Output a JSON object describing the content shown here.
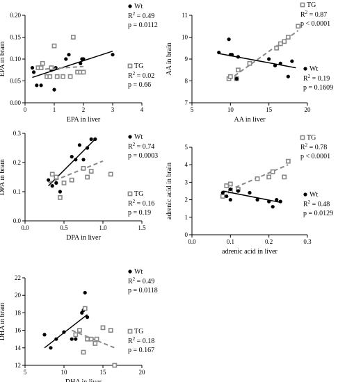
{
  "chart_data": [
    {
      "type": "scatter",
      "xlabel": "EPA in liver",
      "ylabel": "EPA in brain",
      "xlim": [
        0,
        4
      ],
      "ylim": [
        0,
        0.2
      ],
      "xticks": [
        "0",
        "1",
        "2",
        "3",
        "4"
      ],
      "yticks": [
        "0.00",
        "0.05",
        "0.10",
        "0.15",
        "0.20"
      ],
      "series": [
        {
          "name": "Wt",
          "marker": "filled-circle",
          "line": "solid",
          "color": "#000000",
          "x": [
            0.25,
            0.3,
            0.4,
            0.55,
            0.8,
            0.9,
            1.0,
            1.05,
            1.4,
            1.5,
            1.9,
            1.95,
            2.0,
            3.0
          ],
          "y": [
            0.08,
            0.07,
            0.04,
            0.04,
            0.06,
            0.075,
            0.03,
            0.08,
            0.1,
            0.11,
            0.09,
            0.1,
            0.1,
            0.11
          ],
          "fit": [
            [
              0.25,
              0.058
            ],
            [
              3.0,
              0.118
            ]
          ],
          "legend": [
            "Wt",
            "R",
            "2",
            " = 0.49",
            "p = 0.0112"
          ]
        },
        {
          "name": "TG",
          "marker": "open-square",
          "line": "dashed",
          "color": "#888888",
          "x": [
            0.45,
            0.55,
            0.6,
            0.75,
            0.85,
            0.9,
            1.0,
            1.1,
            1.3,
            1.55,
            1.65,
            1.8,
            1.9,
            2.0
          ],
          "y": [
            0.08,
            0.08,
            0.09,
            0.06,
            0.06,
            0.08,
            0.13,
            0.06,
            0.06,
            0.06,
            0.15,
            0.07,
            0.07,
            0.07
          ],
          "fit": [
            [
              0.45,
              0.076
            ],
            [
              2.0,
              0.083
            ]
          ],
          "legend": [
            "TG",
            "R",
            "2",
            " = 0.02",
            "p = 0.66"
          ]
        }
      ]
    },
    {
      "type": "scatter",
      "xlabel": "AA in liver",
      "ylabel": "AA in brain",
      "xlim": [
        5,
        20
      ],
      "ylim": [
        7,
        11
      ],
      "xticks": [
        "5",
        "10",
        "15",
        "20"
      ],
      "yticks": [
        "7",
        "8",
        "9",
        "10",
        "11"
      ],
      "series": [
        {
          "name": "TG",
          "marker": "open-square",
          "line": "dashed",
          "color": "#888888",
          "x": [
            9.8,
            10.0,
            10.8,
            11.0,
            12.5,
            16.0,
            16.5,
            17.0,
            17.5,
            18.8
          ],
          "y": [
            8.1,
            8.2,
            8.1,
            8.5,
            8.8,
            9.5,
            9.7,
            9.8,
            10.0,
            10.5
          ],
          "fit": [
            [
              9.8,
              8.05
            ],
            [
              18.8,
              10.3
            ]
          ],
          "legend": [
            "TG",
            "R",
            "2",
            " = 0.87",
            "p < 0.0001"
          ]
        },
        {
          "name": "Wt",
          "marker": "filled-circle",
          "line": "solid",
          "color": "#000000",
          "x": [
            8.5,
            9.8,
            10.0,
            10.2,
            10.8,
            11.0,
            15.0,
            15.8,
            16.5,
            17.5,
            18.0
          ],
          "y": [
            9.3,
            9.9,
            9.2,
            9.2,
            8.1,
            9.1,
            9.0,
            8.7,
            8.8,
            8.2,
            8.9
          ],
          "fit": [
            [
              8.5,
              9.25
            ],
            [
              18.5,
              8.6
            ]
          ],
          "legend": [
            "Wt",
            "R",
            "2",
            " = 0.19",
            "p = 0.1609"
          ]
        }
      ]
    },
    {
      "type": "scatter",
      "xlabel": "DPA in liver",
      "ylabel": "DPA in brain",
      "xlim": [
        0,
        1.5
      ],
      "ylim": [
        0,
        0.3
      ],
      "xticks": [
        "0.0",
        "0.5",
        "1.0",
        "1.5"
      ],
      "yticks": [
        "0.0",
        "0.1",
        "0.2",
        "0.3"
      ],
      "series": [
        {
          "name": "Wt",
          "marker": "filled-circle",
          "line": "solid",
          "color": "#000000",
          "x": [
            0.3,
            0.35,
            0.4,
            0.45,
            0.6,
            0.65,
            0.7,
            0.75,
            0.8,
            0.85,
            0.9
          ],
          "y": [
            0.14,
            0.12,
            0.13,
            0.1,
            0.22,
            0.21,
            0.26,
            0.21,
            0.25,
            0.28,
            0.28
          ],
          "fit": [
            [
              0.3,
              0.12
            ],
            [
              0.9,
              0.28
            ]
          ],
          "legend": [
            "Wt",
            "R",
            "2",
            " = 0.74",
            "p = 0.0003"
          ]
        },
        {
          "name": "TG",
          "marker": "open-square",
          "line": "dashed",
          "color": "#888888",
          "x": [
            0.35,
            0.4,
            0.45,
            0.5,
            0.6,
            0.75,
            0.8,
            0.85,
            1.1
          ],
          "y": [
            0.16,
            0.15,
            0.08,
            0.13,
            0.14,
            0.18,
            0.15,
            0.17,
            0.16
          ],
          "fit": [
            [
              0.3,
              0.13
            ],
            [
              1.0,
              0.205
            ]
          ],
          "legend": [
            "TG",
            "R",
            "2",
            " = 0.16",
            "p = 0.19"
          ]
        }
      ]
    },
    {
      "type": "scatter",
      "xlabel": "adrenic acid in liver",
      "ylabel": "adrenic acid in brain",
      "xlim": [
        0,
        0.3
      ],
      "ylim": [
        0,
        5
      ],
      "xticks": [
        "0.0",
        "0.1",
        "0.2",
        "0.3"
      ],
      "yticks": [
        "0",
        "1",
        "2",
        "3",
        "4",
        "5"
      ],
      "series": [
        {
          "name": "TG",
          "marker": "open-square",
          "line": "dashed",
          "color": "#888888",
          "x": [
            0.08,
            0.09,
            0.1,
            0.1,
            0.12,
            0.17,
            0.2,
            0.21,
            0.24,
            0.25
          ],
          "y": [
            2.2,
            2.8,
            2.5,
            2.9,
            2.6,
            3.2,
            3.3,
            3.6,
            3.3,
            4.2
          ],
          "fit": [
            [
              0.08,
              2.4
            ],
            [
              0.25,
              4.0
            ]
          ],
          "legend": [
            "TG",
            "R",
            "2",
            " = 0.78",
            "p < 0.0001"
          ]
        },
        {
          "name": "Wt",
          "marker": "filled-circle",
          "line": "solid",
          "color": "#000000",
          "x": [
            0.08,
            0.09,
            0.1,
            0.1,
            0.12,
            0.15,
            0.17,
            0.2,
            0.21,
            0.22,
            0.23
          ],
          "y": [
            2.4,
            2.2,
            2.6,
            2.0,
            2.5,
            2.4,
            2.0,
            1.9,
            1.6,
            2.0,
            1.9
          ],
          "fit": [
            [
              0.08,
              2.5
            ],
            [
              0.23,
              1.85
            ]
          ],
          "legend": [
            "Wt",
            "R",
            "2",
            " = 0.48",
            "p = 0.0129"
          ]
        }
      ]
    },
    {
      "type": "scatter",
      "xlabel": "DHA in liver",
      "ylabel": "DHA in brain",
      "xlim": [
        5,
        20
      ],
      "ylim": [
        12,
        22
      ],
      "xticks": [
        "5",
        "10",
        "15",
        "20"
      ],
      "yticks": [
        "12",
        "14",
        "16",
        "18",
        "20",
        "22"
      ],
      "series": [
        {
          "name": "Wt",
          "marker": "filled-circle",
          "line": "solid",
          "color": "#000000",
          "x": [
            7.5,
            8.3,
            9.0,
            10.0,
            11.0,
            11.5,
            12.0,
            12.3,
            12.5,
            12.7,
            13.0
          ],
          "y": [
            15.5,
            14.0,
            15.0,
            15.8,
            15.0,
            15.0,
            16.0,
            18.0,
            18.3,
            20.3,
            17.5
          ],
          "fit": [
            [
              7.5,
              14.0
            ],
            [
              13.0,
              17.8
            ]
          ],
          "legend": [
            "Wt",
            "R",
            "2",
            " = 0.49",
            "p = 0.0118"
          ]
        },
        {
          "name": "TG",
          "marker": "open-square",
          "line": "dashed",
          "color": "#888888",
          "x": [
            11.5,
            12.0,
            12.5,
            12.7,
            13.0,
            13.5,
            14.0,
            14.2,
            15.0,
            16.0,
            16.5
          ],
          "y": [
            15.5,
            16.0,
            13.5,
            18.5,
            15.0,
            15.0,
            14.5,
            15.0,
            16.3,
            16.0,
            12.0
          ],
          "fit": [
            [
              11.0,
              16.0
            ],
            [
              16.5,
              14.0
            ]
          ],
          "legend": [
            "TG",
            "R",
            "2",
            " = 0.18",
            "p = 0.167"
          ]
        }
      ]
    }
  ]
}
